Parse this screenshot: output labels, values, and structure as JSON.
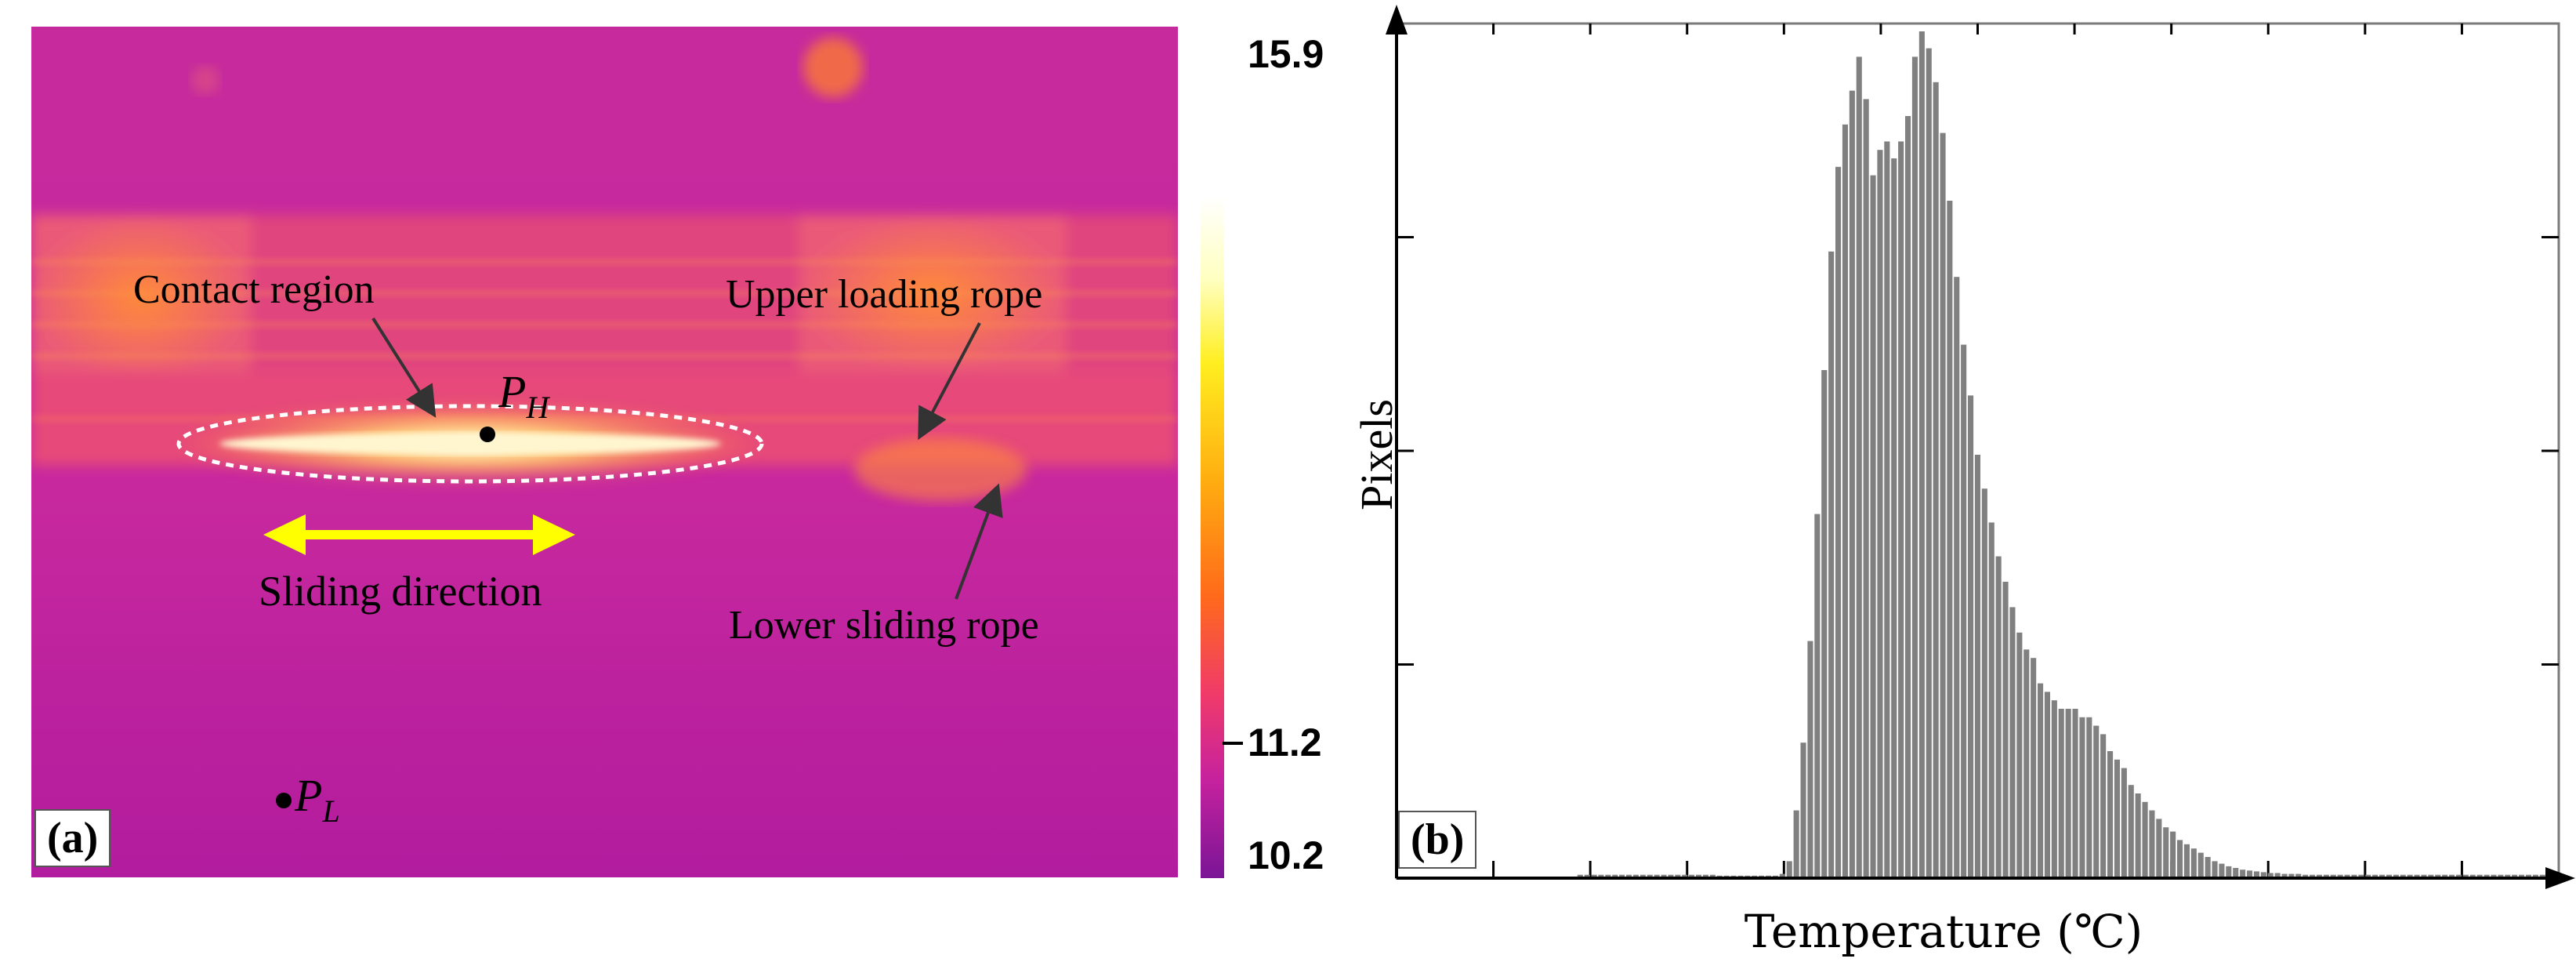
{
  "panel_a": {
    "tag": "(a)",
    "labels": {
      "contact_region": "Contact region",
      "upper_loading_rope": "Upper loading rope",
      "lower_sliding_rope": "Lower sliding rope",
      "sliding_direction": "Sliding direction",
      "ph_main": "P",
      "ph_sub": "H",
      "pl_main": "P",
      "pl_sub": "L"
    },
    "colorbar": {
      "max_label": "15.9",
      "mid_label": "11.2",
      "min_label": "10.2",
      "colors": [
        "#ffffe0",
        "#ffff40",
        "#ffd000",
        "#ff9a10",
        "#ff5e28",
        "#f03a6a",
        "#d21d9a",
        "#a0149e",
        "#7a1596"
      ]
    },
    "colors": {
      "background": "#c5279c",
      "band": "#e8557c",
      "hot": "#ffe88a",
      "arrow": "#ffff00"
    }
  },
  "panel_b": {
    "tag": "(b)"
  },
  "chart_data": {
    "type": "bar",
    "title": "",
    "xlabel": "Temperature (℃)",
    "ylabel": "Pixels",
    "xlim": [
      0,
      1
    ],
    "ylim": [
      0,
      1
    ],
    "bar_color": "#808080",
    "x": [
      0.158,
      0.164,
      0.17,
      0.176,
      0.182,
      0.188,
      0.194,
      0.2,
      0.206,
      0.212,
      0.218,
      0.224,
      0.23,
      0.236,
      0.242,
      0.248,
      0.254,
      0.26,
      0.266,
      0.272,
      0.278,
      0.284,
      0.29,
      0.296,
      0.302,
      0.308,
      0.314,
      0.32,
      0.326,
      0.332,
      0.338,
      0.344,
      0.35,
      0.356,
      0.362,
      0.368,
      0.374,
      0.38,
      0.386,
      0.392,
      0.398,
      0.404,
      0.41,
      0.416,
      0.422,
      0.428,
      0.434,
      0.44,
      0.446,
      0.452,
      0.458,
      0.464,
      0.47,
      0.476,
      0.482,
      0.488,
      0.494,
      0.5,
      0.506,
      0.512,
      0.518,
      0.524,
      0.53,
      0.536,
      0.542,
      0.548,
      0.554,
      0.56,
      0.566,
      0.572,
      0.578,
      0.584,
      0.59,
      0.596,
      0.602,
      0.608,
      0.614,
      0.62,
      0.626,
      0.632,
      0.638,
      0.644,
      0.65,
      0.656,
      0.662,
      0.668,
      0.674,
      0.68,
      0.686,
      0.692,
      0.698,
      0.704,
      0.71,
      0.716,
      0.722,
      0.728,
      0.734,
      0.74,
      0.746,
      0.752,
      0.758,
      0.764,
      0.77,
      0.776,
      0.782,
      0.788,
      0.794,
      0.8,
      0.806,
      0.812,
      0.818,
      0.824,
      0.83,
      0.836,
      0.842,
      0.848,
      0.854,
      0.86,
      0.866,
      0.872,
      0.878,
      0.884,
      0.89,
      0.896,
      0.902,
      0.908,
      0.914,
      0.92,
      0.926,
      0.932,
      0.938,
      0.944,
      0.95,
      0.956,
      0.962,
      0.968,
      0.974,
      0.98,
      0.986,
      0.992
    ],
    "values": [
      0.004,
      0.004,
      0.004,
      0.004,
      0.004,
      0.004,
      0.004,
      0.004,
      0.004,
      0.004,
      0.004,
      0.004,
      0.004,
      0.004,
      0.004,
      0.004,
      0.004,
      0.004,
      0.004,
      0.004,
      0.003,
      0.003,
      0.003,
      0.003,
      0.003,
      0.003,
      0.003,
      0.003,
      0.003,
      0.005,
      0.02,
      0.08,
      0.16,
      0.28,
      0.43,
      0.6,
      0.74,
      0.84,
      0.89,
      0.93,
      0.97,
      0.92,
      0.83,
      0.86,
      0.87,
      0.85,
      0.87,
      0.9,
      0.97,
      1.0,
      0.98,
      0.94,
      0.88,
      0.8,
      0.71,
      0.63,
      0.57,
      0.5,
      0.46,
      0.42,
      0.38,
      0.35,
      0.32,
      0.29,
      0.27,
      0.26,
      0.23,
      0.22,
      0.21,
      0.2,
      0.2,
      0.2,
      0.19,
      0.19,
      0.18,
      0.17,
      0.15,
      0.14,
      0.13,
      0.11,
      0.1,
      0.09,
      0.08,
      0.07,
      0.06,
      0.055,
      0.045,
      0.04,
      0.035,
      0.03,
      0.025,
      0.02,
      0.017,
      0.014,
      0.012,
      0.01,
      0.009,
      0.008,
      0.007,
      0.006,
      0.006,
      0.005,
      0.005,
      0.005,
      0.004,
      0.004,
      0.004,
      0.004,
      0.004,
      0.004,
      0.004,
      0.004,
      0.004,
      0.004,
      0.004,
      0.004,
      0.004,
      0.004,
      0.004,
      0.004,
      0.004,
      0.004,
      0.004,
      0.004,
      0.004,
      0.004,
      0.004,
      0.004,
      0.004,
      0.004,
      0.004,
      0.004,
      0.004,
      0.004,
      0.004,
      0.004,
      0.004,
      0.004,
      0.004,
      0.004
    ]
  }
}
